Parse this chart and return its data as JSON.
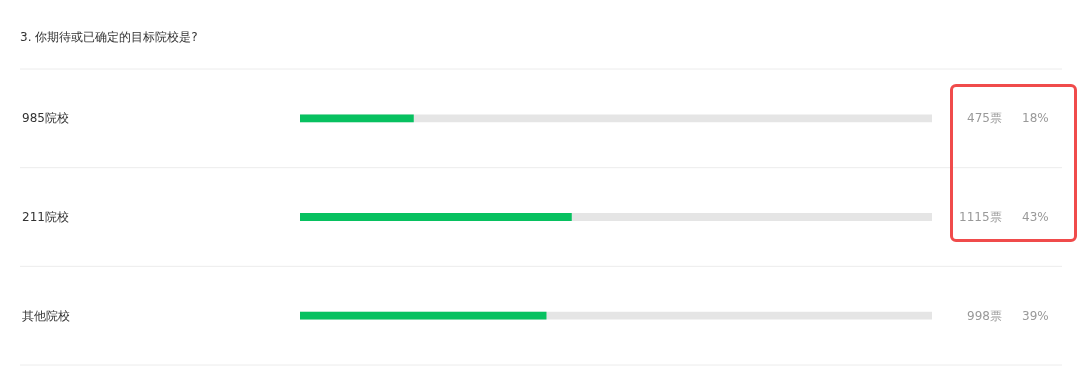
{
  "chart_data": {
    "type": "bar",
    "orientation": "horizontal",
    "title": "3. 你期待或已确定的目标院校是?",
    "categories": [
      "985院校",
      "211院校",
      "其他院校"
    ],
    "values": [
      18,
      43,
      39
    ],
    "color": "#07c160",
    "xlim": [
      0,
      100
    ],
    "value_labels": [
      "18%",
      "43%",
      "39%"
    ],
    "tick_labels": "y",
    "annotations": [
      "475票",
      "1115票",
      "998票"
    ]
  }
}
